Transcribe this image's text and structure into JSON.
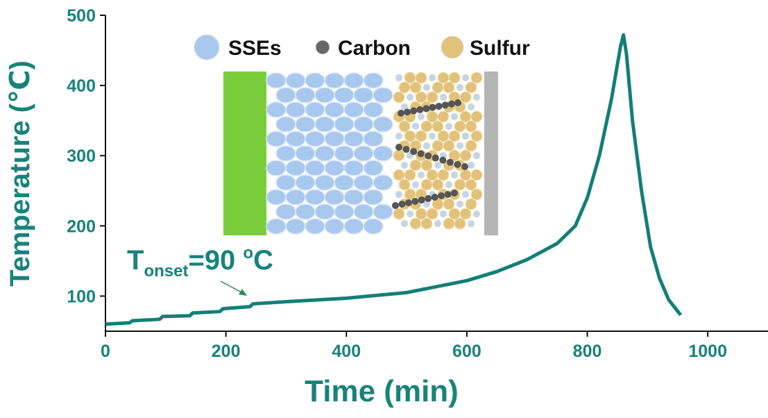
{
  "chart_data": {
    "type": "line",
    "xlabel": "Time (min)",
    "ylabel": "Temperature (℃)",
    "x": [
      0,
      40,
      45,
      90,
      95,
      140,
      145,
      190,
      195,
      240,
      245,
      300,
      400,
      500,
      600,
      650,
      700,
      750,
      780,
      800,
      820,
      840,
      855,
      860,
      865,
      875,
      890,
      905,
      920,
      935,
      955
    ],
    "values": [
      60,
      62,
      65,
      67,
      71,
      72,
      76,
      78,
      82,
      85,
      89,
      92,
      97,
      105,
      122,
      135,
      152,
      175,
      200,
      240,
      300,
      380,
      455,
      472,
      445,
      350,
      250,
      170,
      125,
      95,
      73
    ],
    "color": "#127f77",
    "xlim": [
      0,
      1100
    ],
    "xticks": [
      0,
      200,
      400,
      600,
      800,
      1000
    ],
    "ylim": [
      50,
      500
    ],
    "yticks": [
      100,
      200,
      300,
      400,
      500
    ],
    "annotation": {
      "main": "T",
      "subscript": "onset",
      "value": "=90 ",
      "superscript": "o",
      "unit": "C"
    },
    "inset_legend": [
      "SSEs",
      "Carbon",
      "Sulfur"
    ]
  }
}
